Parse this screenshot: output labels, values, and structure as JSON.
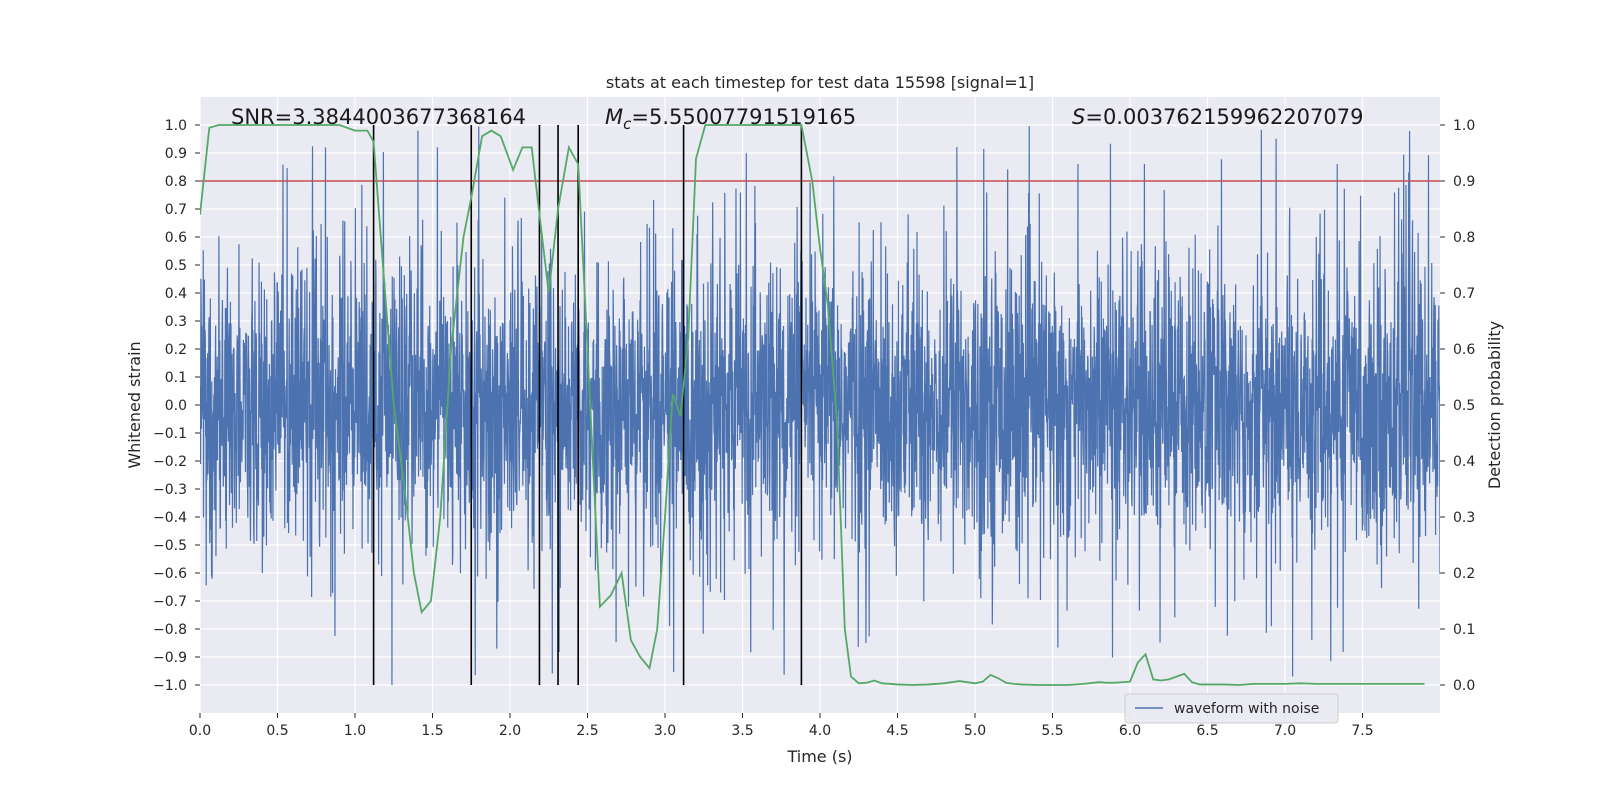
{
  "chart_data": {
    "type": "line",
    "title": "stats at each timestep for test data 15598 [signal=1]",
    "xlabel": "Time (s)",
    "ylabel": "Whitened strain",
    "ylabel_right": "Detection probability",
    "xlim": [
      0,
      8
    ],
    "ylim": [
      -1.1,
      1.1
    ],
    "ylim_right": [
      -0.05,
      1.05
    ],
    "xticks": [
      0.0,
      0.5,
      1.0,
      1.5,
      2.0,
      2.5,
      3.0,
      3.5,
      4.0,
      4.5,
      5.0,
      5.5,
      6.0,
      6.5,
      7.0,
      7.5
    ],
    "xtick_labels": [
      "0.0",
      "0.5",
      "1.0",
      "1.5",
      "2.0",
      "2.5",
      "3.0",
      "3.5",
      "4.0",
      "4.5",
      "5.0",
      "5.5",
      "6.0",
      "6.5",
      "7.0",
      "7.5"
    ],
    "yticks": [
      1.0,
      0.9,
      0.8,
      0.7,
      0.6,
      0.5,
      0.4,
      0.3,
      0.2,
      0.1,
      0.0,
      -0.1,
      -0.2,
      -0.3,
      -0.4,
      -0.5,
      -0.6,
      -0.7,
      -0.8,
      -0.9,
      -1.0
    ],
    "ytick_labels": [
      "1.0",
      "0.9",
      "0.8",
      "0.7",
      "0.6",
      "0.5",
      "0.4",
      "0.3",
      "0.2",
      "0.1",
      "0.0",
      "−0.1",
      "−0.2",
      "−0.3",
      "−0.4",
      "−0.5",
      "−0.6",
      "−0.7",
      "−0.8",
      "−0.9",
      "−1.0"
    ],
    "yticks_right": [
      1.0,
      0.9,
      0.8,
      0.7,
      0.6,
      0.5,
      0.4,
      0.3,
      0.2,
      0.1,
      0.0
    ],
    "ytick_labels_right": [
      "1.0",
      "0.9",
      "0.8",
      "0.7",
      "0.6",
      "0.5",
      "0.4",
      "0.3",
      "0.2",
      "0.1",
      "0.0"
    ],
    "grid": true,
    "threshold": {
      "value_right": 0.9,
      "color": "#c44e52"
    },
    "vertical_lines": [
      1.12,
      1.75,
      2.19,
      2.31,
      2.44,
      3.12,
      3.88
    ],
    "annotations": {
      "snr": "SNR=3.3844003677368164",
      "mc_symbol": "M",
      "mc_sub": "c",
      "mc_value": "=5.55007791519165",
      "s_symbol": "S",
      "s_value": "=0.003762159962207079"
    },
    "legend": {
      "label": "waveform with noise",
      "placement": "lower-right"
    },
    "series": [
      {
        "name": "waveform with noise",
        "axis": "left",
        "color": "#4c72b0",
        "description": "dense noise strain signal, roughly within ±0.65 with spikes near ±1.0",
        "band_envelope": 0.42,
        "spike_max": 1.0
      },
      {
        "name": "detection probability",
        "axis": "right",
        "color": "#55a868",
        "x": [
          0.0,
          0.06,
          0.12,
          0.25,
          0.5,
          0.75,
          0.9,
          1.0,
          1.08,
          1.12,
          1.18,
          1.25,
          1.32,
          1.38,
          1.43,
          1.49,
          1.55,
          1.62,
          1.7,
          1.75,
          1.82,
          1.88,
          1.94,
          2.02,
          2.08,
          2.14,
          2.19,
          2.25,
          2.31,
          2.38,
          2.44,
          2.5,
          2.58,
          2.65,
          2.72,
          2.78,
          2.84,
          2.9,
          2.95,
          3.0,
          3.05,
          3.1,
          3.15,
          3.2,
          3.26,
          3.5,
          3.75,
          3.88,
          3.95,
          4.0,
          4.05,
          4.11,
          4.16,
          4.2,
          4.25,
          4.3,
          4.35,
          4.4,
          4.5,
          4.6,
          4.7,
          4.8,
          4.9,
          5.0,
          5.05,
          5.1,
          5.15,
          5.2,
          5.25,
          5.3,
          5.4,
          5.5,
          5.6,
          5.7,
          5.8,
          5.85,
          5.9,
          6.0,
          6.05,
          6.1,
          6.15,
          6.2,
          6.25,
          6.3,
          6.35,
          6.4,
          6.45,
          6.5,
          6.6,
          6.7,
          6.8,
          6.9,
          7.0,
          7.1,
          7.2,
          7.3,
          7.4,
          7.5,
          7.6,
          7.7,
          7.8,
          7.9
        ],
        "y": [
          0.84,
          0.995,
          1.0,
          1.0,
          1.0,
          1.0,
          1.0,
          0.99,
          0.99,
          0.97,
          0.75,
          0.5,
          0.35,
          0.2,
          0.13,
          0.15,
          0.3,
          0.6,
          0.8,
          0.87,
          0.98,
          0.99,
          0.98,
          0.92,
          0.96,
          0.96,
          0.84,
          0.7,
          0.85,
          0.96,
          0.93,
          0.6,
          0.14,
          0.16,
          0.2,
          0.08,
          0.05,
          0.03,
          0.1,
          0.3,
          0.52,
          0.48,
          0.62,
          0.94,
          1.0,
          1.0,
          1.0,
          1.0,
          0.9,
          0.78,
          0.68,
          0.47,
          0.1,
          0.015,
          0.003,
          0.004,
          0.008,
          0.003,
          0.001,
          0.0,
          0.001,
          0.003,
          0.007,
          0.003,
          0.006,
          0.018,
          0.012,
          0.004,
          0.002,
          0.001,
          0.0,
          0.0,
          0.0,
          0.002,
          0.005,
          0.004,
          0.004,
          0.006,
          0.04,
          0.055,
          0.01,
          0.008,
          0.01,
          0.015,
          0.02,
          0.005,
          0.001,
          0.001,
          0.001,
          0.0,
          0.002,
          0.002,
          0.002,
          0.003,
          0.002,
          0.002,
          0.002,
          0.002,
          0.002,
          0.002,
          0.002,
          0.002
        ]
      }
    ]
  }
}
